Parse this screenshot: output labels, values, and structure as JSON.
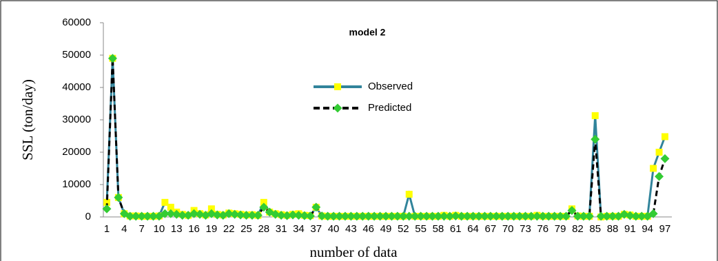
{
  "chart_data": {
    "type": "line",
    "title": "model 2",
    "x_label": "number of data",
    "y_label": "SSL (ton/day)",
    "categories": [
      "1",
      null,
      null,
      "4",
      null,
      null,
      "7",
      null,
      null,
      "10",
      null,
      null,
      "13",
      null,
      null,
      "16",
      null,
      null,
      "19",
      null,
      null,
      "22",
      null,
      null,
      "25",
      null,
      null,
      "28",
      null,
      null,
      "31",
      null,
      null,
      "34",
      null,
      null,
      "37",
      null,
      null,
      "40",
      null,
      null,
      "43",
      null,
      null,
      "46",
      null,
      null,
      "49",
      null,
      null,
      "52",
      null,
      null,
      "55",
      null,
      null,
      "58",
      null,
      null,
      "61",
      null,
      null,
      "64",
      null,
      null,
      "67",
      null,
      null,
      "70",
      null,
      null,
      "73",
      null,
      null,
      "76",
      null,
      null,
      "79",
      null,
      null,
      "82",
      null,
      null,
      "85",
      null,
      null,
      "88",
      null,
      null,
      "91",
      null,
      null,
      "94",
      null,
      null,
      "97"
    ],
    "series": [
      {
        "name": "Observed",
        "color": "#31849b",
        "marker": "square",
        "marker_color": "#ffff00",
        "dashed": false,
        "values": [
          4500,
          49000,
          6000,
          1000,
          300,
          300,
          200,
          200,
          200,
          300,
          4500,
          3000,
          1500,
          800,
          500,
          2000,
          1000,
          600,
          2500,
          800,
          600,
          1200,
          1000,
          800,
          600,
          700,
          500,
          4500,
          1500,
          1000,
          700,
          500,
          800,
          1000,
          500,
          400,
          3000,
          300,
          200,
          200,
          200,
          200,
          200,
          200,
          200,
          200,
          200,
          200,
          200,
          200,
          200,
          200,
          7000,
          200,
          200,
          200,
          200,
          200,
          500,
          200,
          500,
          200,
          200,
          200,
          200,
          200,
          200,
          200,
          200,
          200,
          200,
          200,
          200,
          200,
          500,
          200,
          200,
          200,
          200,
          200,
          2500,
          300,
          200,
          200,
          31300,
          0,
          200,
          200,
          200,
          800,
          600,
          200,
          200,
          200,
          15000,
          20000,
          24800
        ]
      },
      {
        "name": "Predicted",
        "color": "#000000",
        "marker": "diamond",
        "marker_color": "#33cc33",
        "dashed": true,
        "values": [
          2500,
          49000,
          6000,
          1000,
          200,
          200,
          200,
          200,
          200,
          200,
          1000,
          1000,
          800,
          500,
          500,
          1000,
          800,
          500,
          1000,
          600,
          500,
          1000,
          800,
          600,
          500,
          500,
          500,
          3000,
          1500,
          800,
          500,
          400,
          600,
          500,
          400,
          300,
          3000,
          300,
          200,
          200,
          200,
          200,
          200,
          200,
          200,
          200,
          200,
          200,
          200,
          200,
          200,
          200,
          200,
          200,
          200,
          200,
          200,
          200,
          200,
          200,
          300,
          200,
          200,
          200,
          200,
          200,
          200,
          200,
          200,
          200,
          200,
          200,
          200,
          200,
          200,
          200,
          200,
          200,
          200,
          200,
          2000,
          200,
          200,
          200,
          24000,
          200,
          200,
          200,
          200,
          800,
          400,
          200,
          200,
          200,
          1000,
          12500,
          18000
        ]
      }
    ],
    "ylim": [
      0,
      60000
    ],
    "yticks": [
      0,
      10000,
      20000,
      30000,
      40000,
      50000,
      60000
    ],
    "grid": false,
    "legend": "top-center"
  }
}
